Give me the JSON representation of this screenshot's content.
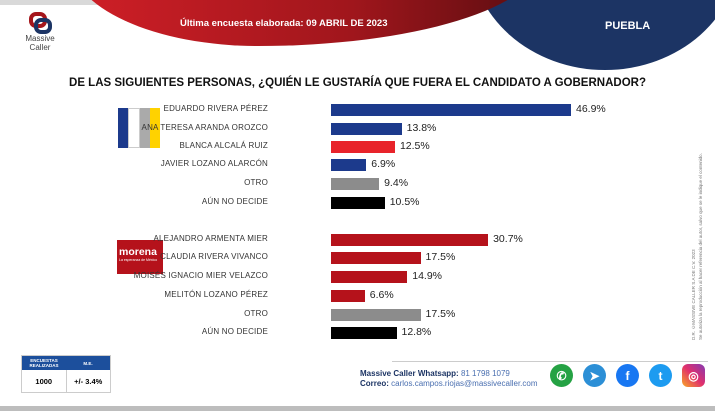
{
  "header": {
    "brand": "Massive Caller",
    "date_text": "Última encuesta elaborada: 09  ABRIL  DE 2023",
    "state": "PUEBLA"
  },
  "chart_data": {
    "type": "bar",
    "orientation": "horizontal",
    "title": "DE LAS SIGUIENTES PERSONAS, ¿QUIÉN LE GUSTARÍA QUE FUERA EL CANDIDATO  A GOBERNADOR?",
    "xlim": [
      0,
      100
    ],
    "groups": [
      {
        "party": "PAN-PRI-PRD",
        "bars": [
          {
            "label": "EDUARDO RIVERA PÉREZ",
            "value": 46.9,
            "display": "46.9%",
            "color": "#1c3a8c"
          },
          {
            "label": "ANA TERESA ARANDA OROZCO",
            "value": 13.8,
            "display": "13.8%",
            "color": "#1c3a8c"
          },
          {
            "label": "BLANCA ALCALÁ RUIZ",
            "value": 12.5,
            "display": "12.5%",
            "color": "#e8232a"
          },
          {
            "label": "JAVIER LOZANO ALARCÓN",
            "value": 6.9,
            "display": "6.9%",
            "color": "#1c3a8c"
          },
          {
            "label": "OTRO",
            "value": 9.4,
            "display": "9.4%",
            "color": "#8c8c8c"
          },
          {
            "label": "AÚN NO DECIDE",
            "value": 10.5,
            "display": "10.5%",
            "color": "#000000"
          }
        ]
      },
      {
        "party": "morena",
        "party_tagline": "La esperanza de México",
        "bars": [
          {
            "label": "ALEJANDRO ARMENTA MIER",
            "value": 30.7,
            "display": "30.7%",
            "color": "#b5121b"
          },
          {
            "label": "CLAUDIA RIVERA VIVANCO",
            "value": 17.5,
            "display": "17.5%",
            "color": "#b5121b"
          },
          {
            "label": "MOISÉS IGNACIO MIER VELAZCO",
            "value": 14.9,
            "display": "14.9%",
            "color": "#b5121b"
          },
          {
            "label": "MELITÓN LOZANO PÉREZ",
            "value": 6.6,
            "display": "6.6%",
            "color": "#b5121b"
          },
          {
            "label": "OTRO",
            "value": 17.5,
            "display": "17.5%",
            "color": "#8c8c8c"
          },
          {
            "label": "AÚN NO DECIDE",
            "value": 12.8,
            "display": "12.8%",
            "color": "#000000"
          }
        ]
      }
    ]
  },
  "side_note": {
    "copyright": "D.R. ©MASSIVE CALLER S.A DE C.V. 2023",
    "notice": "Se autoriza la reproducción al hacer referencia del autor, salvo que se le indique el contenido."
  },
  "stats": {
    "surveys_header": "ENCUESTAS REALIZADAS",
    "margin_header": "M.E.",
    "surveys": "1000",
    "margin": "+/- 3.4%"
  },
  "contact": {
    "whatsapp_label": "Massive Caller Whatsapp:",
    "whatsapp": "81 1798 1079",
    "email_label": "Correo:",
    "email": "carlos.campos.riojas@massivecaller.com"
  },
  "social": [
    {
      "icon": "whatsapp-icon",
      "color": "#25a244"
    },
    {
      "icon": "telegram-icon",
      "color": "#2c8fd6"
    },
    {
      "icon": "facebook-icon",
      "color": "#1877f2"
    },
    {
      "icon": "twitter-icon",
      "color": "#1d9bf0"
    },
    {
      "icon": "instagram-icon",
      "color": "#c13584"
    }
  ]
}
